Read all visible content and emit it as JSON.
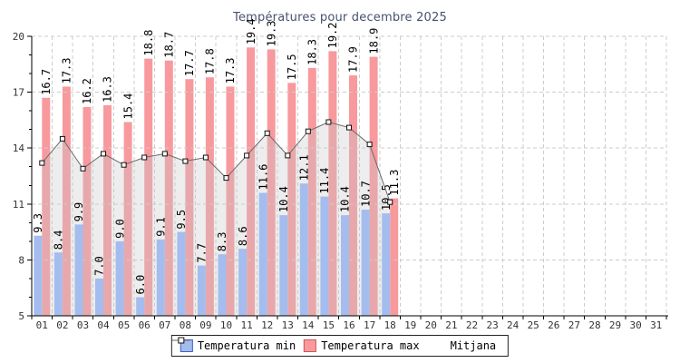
{
  "title": "Températures pour decembre 2025",
  "legend": {
    "min_label": "Temperatura min",
    "max_label": "Temperatura max",
    "mean_label": "Mitjana"
  },
  "colors": {
    "min_bar": "#a4bdee",
    "max_bar": "#f8999d",
    "mean_line": "#6b6b6b",
    "mean_marker_fill": "#ffffff",
    "mean_marker_stroke": "#111111",
    "mean_area": "rgba(200,200,200,0.33)",
    "grid": "#cccccc",
    "axis": "#000000",
    "tick_label": "#333333",
    "value_label": "#000000",
    "title": "#46526e"
  },
  "chart_data": {
    "type": "bar",
    "title": "Températures pour decembre 2025",
    "xlabel": "",
    "ylabel": "",
    "ylim": [
      5,
      20
    ],
    "yticks": [
      5,
      8,
      11,
      14,
      17,
      20
    ],
    "grid": true,
    "legend_position": "bottom",
    "categories": [
      "01",
      "02",
      "03",
      "04",
      "05",
      "06",
      "07",
      "08",
      "09",
      "10",
      "11",
      "12",
      "13",
      "14",
      "15",
      "16",
      "17",
      "18",
      "19",
      "20",
      "21",
      "22",
      "23",
      "24",
      "25",
      "26",
      "27",
      "28",
      "29",
      "30",
      "31"
    ],
    "series": [
      {
        "name": "Temperatura min",
        "type": "bar",
        "color": "#a4bdee",
        "values": [
          9.3,
          8.4,
          9.9,
          7.0,
          9.0,
          6.0,
          9.1,
          9.5,
          7.7,
          8.3,
          8.6,
          11.6,
          10.4,
          12.1,
          11.4,
          10.4,
          10.7,
          10.5,
          null,
          null,
          null,
          null,
          null,
          null,
          null,
          null,
          null,
          null,
          null,
          null,
          null
        ]
      },
      {
        "name": "Temperatura max",
        "type": "bar",
        "color": "#f8999d",
        "values": [
          16.7,
          17.3,
          16.2,
          16.3,
          15.4,
          18.8,
          18.7,
          17.7,
          17.8,
          17.3,
          19.4,
          19.3,
          17.5,
          18.3,
          19.2,
          17.9,
          18.9,
          11.3,
          null,
          null,
          null,
          null,
          null,
          null,
          null,
          null,
          null,
          null,
          null,
          null,
          null
        ]
      },
      {
        "name": "Mitjana",
        "type": "line",
        "color": "#6b6b6b",
        "values": [
          13.2,
          14.5,
          12.9,
          13.7,
          13.1,
          13.5,
          13.7,
          13.3,
          13.5,
          12.4,
          13.6,
          14.8,
          13.6,
          14.9,
          15.4,
          15.1,
          14.2,
          11.1,
          null,
          null,
          null,
          null,
          null,
          null,
          null,
          null,
          null,
          null,
          null,
          null,
          null
        ]
      }
    ]
  }
}
